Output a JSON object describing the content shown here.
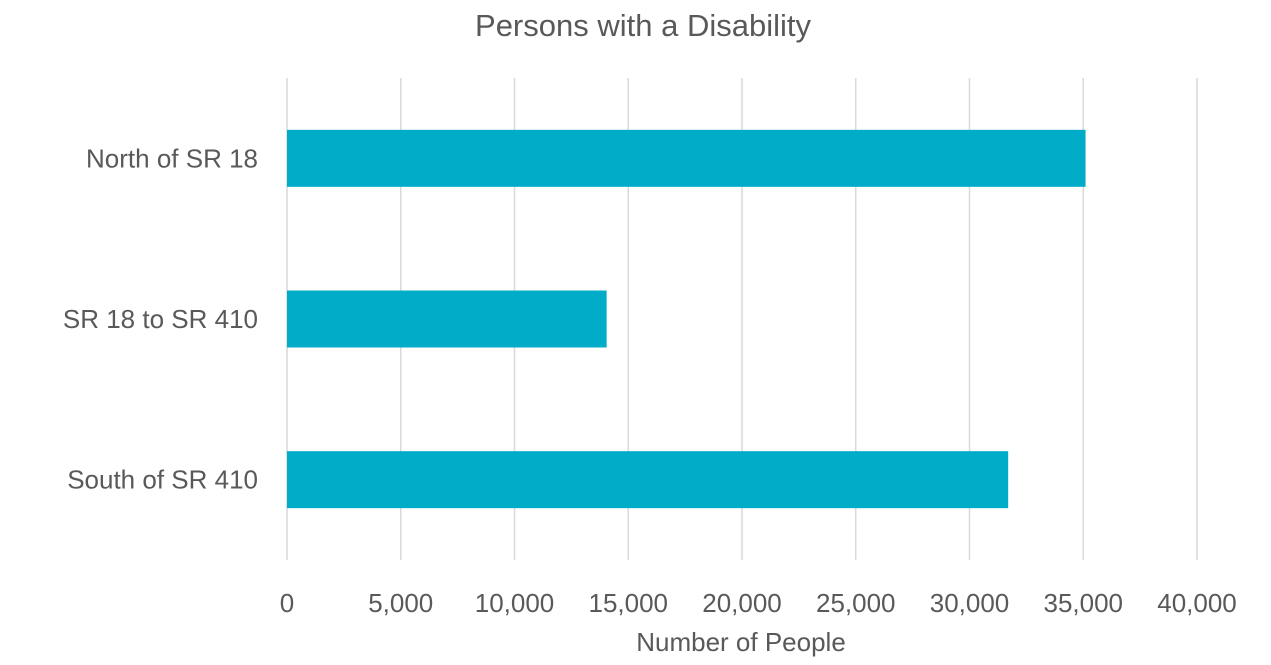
{
  "chart_data": {
    "type": "bar",
    "orientation": "horizontal",
    "title": "Persons with a Disability",
    "xlabel": "Number of People",
    "ylabel": "",
    "categories": [
      "North of SR 18",
      "SR 18 to SR 410",
      "South of SR 410"
    ],
    "values": [
      35100,
      14050,
      31700
    ],
    "xlim": [
      0,
      40000
    ],
    "xticks": [
      0,
      5000,
      10000,
      15000,
      20000,
      25000,
      30000,
      35000,
      40000
    ],
    "xtick_labels": [
      "0",
      "5,000",
      "10,000",
      "15,000",
      "20,000",
      "25,000",
      "30,000",
      "35,000",
      "40,000"
    ],
    "grid": true,
    "legend": "none",
    "colors": {
      "bar": "#00ACC8",
      "grid": "#D9D9D9",
      "text": "#595959"
    }
  }
}
